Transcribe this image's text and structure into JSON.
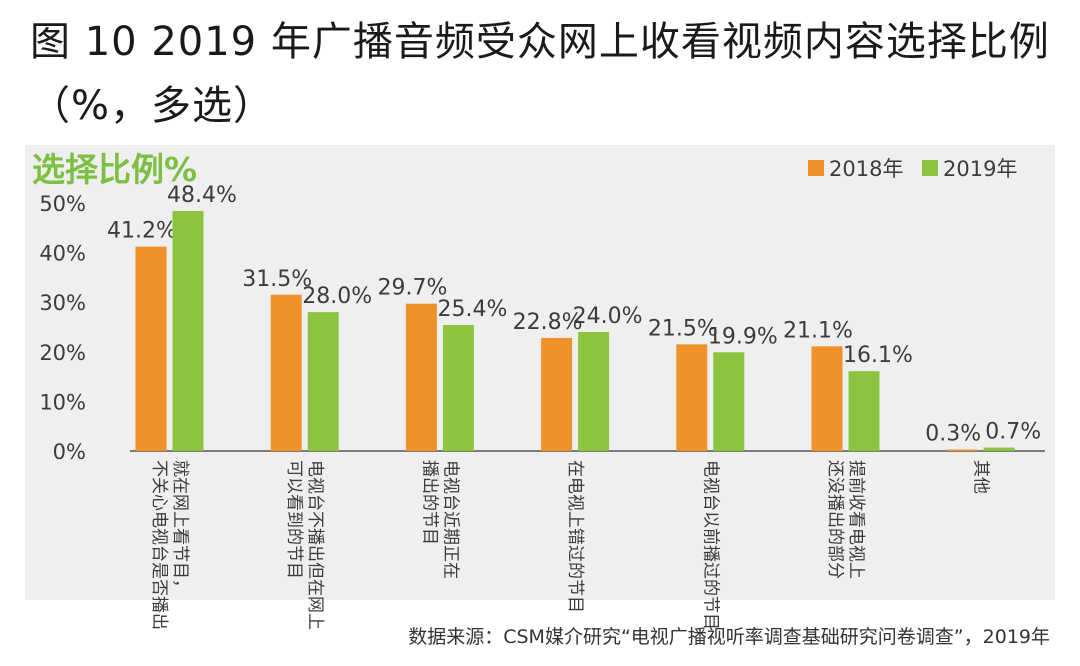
{
  "title": "图 10  2019 年广播音频受众网上收看视频内容选择比例（%，多选）",
  "source": "数据来源：CSM媒介研究“电视广播视听率调查基础研究问卷调查”，2019年",
  "colors": {
    "s2018": "#f0912a",
    "s2019": "#8dc43f",
    "panel": "#efefef",
    "axis": "#555555",
    "heading": "#7cc043"
  },
  "chart_data": {
    "type": "bar",
    "ylabel": "选择比例%",
    "ylim": [
      0,
      50
    ],
    "yticks": [
      "0%",
      "10%",
      "20%",
      "30%",
      "40%",
      "50%"
    ],
    "legend_position": "top-right",
    "categories": [
      [
        "就在网上看节目，",
        "不关心电视台是否播出"
      ],
      [
        "电视台不播出但在网上",
        "可以看到的节目"
      ],
      [
        "电视台近期正在",
        "播出的节目"
      ],
      [
        "在电视上错过的节目"
      ],
      [
        "电视台以前播过的节目"
      ],
      [
        "提前收看电视上",
        "还没播出的部分"
      ],
      [
        "其他"
      ]
    ],
    "series": [
      {
        "name": "2018年",
        "values": [
          41.2,
          31.5,
          29.7,
          22.8,
          21.5,
          21.1,
          0.3
        ],
        "labels": [
          "41.2%",
          "31.5%",
          "29.7%",
          "22.8%",
          "21.5%",
          "21.1%",
          "0.3%"
        ]
      },
      {
        "name": "2019年",
        "values": [
          48.4,
          28.0,
          25.4,
          24.0,
          19.9,
          16.1,
          0.7
        ],
        "labels": [
          "48.4%",
          "28.0%",
          "25.4%",
          "24.0%",
          "19.9%",
          "16.1%",
          "0.7%"
        ]
      }
    ]
  }
}
